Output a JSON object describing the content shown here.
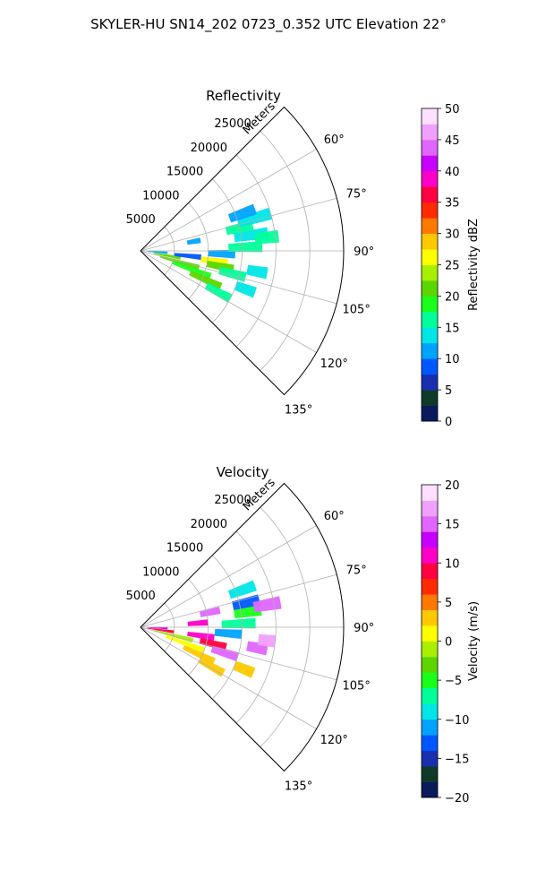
{
  "figure": {
    "suptitle": "SKYLER-HU  SN14_202  0723_0.352 UTC Elevation 22°"
  },
  "chart_data": [
    {
      "type": "heatmap",
      "subtype": "polar-sector",
      "title": "Reflectivity",
      "rlabel": "Meters",
      "theta_range_deg": [
        45,
        135
      ],
      "r_range": [
        0,
        30000
      ],
      "r_ticks": [
        5000,
        10000,
        15000,
        20000,
        25000
      ],
      "r_tick_labels": [
        "5000",
        "10000",
        "15000",
        "20000",
        "25000"
      ],
      "theta_ticks_deg": [
        60,
        75,
        90,
        105,
        120,
        135
      ],
      "theta_tick_labels": [
        "60°",
        "75°",
        "90°",
        "105°",
        "120°",
        "135°"
      ],
      "grid": true,
      "colorbar": {
        "label": "Reflectivity dBZ",
        "range": [
          0,
          50
        ],
        "ticks": [
          "0",
          "5",
          "10",
          "15",
          "20",
          "25",
          "30",
          "35",
          "40",
          "45",
          "50"
        ],
        "colors": [
          "#0a1a5c",
          "#0f3a2a",
          "#1a2fb0",
          "#0057ff",
          "#00a3ff",
          "#00e6e6",
          "#00ff9a",
          "#1aff1a",
          "#5cd600",
          "#a8f000",
          "#ffff00",
          "#ffc800",
          "#ff7800",
          "#ff2a00",
          "#ff0040",
          "#ff00c8",
          "#c800ff",
          "#e066ff",
          "#f0a0ff",
          "#fde0ff"
        ]
      },
      "echoes": [
        {
          "azimuth": 94,
          "range_start": 1000,
          "range_end": 4000,
          "value": 12
        },
        {
          "azimuth": 100,
          "range_start": 2000,
          "range_end": 6000,
          "value": 20
        },
        {
          "azimuth": 106,
          "range_start": 3000,
          "range_end": 9000,
          "value": 22
        },
        {
          "azimuth": 110,
          "range_start": 5000,
          "range_end": 11000,
          "value": 18
        },
        {
          "azimuth": 114,
          "range_start": 8000,
          "range_end": 13000,
          "value": 20
        },
        {
          "azimuth": 118,
          "range_start": 11000,
          "range_end": 15000,
          "value": 16
        },
        {
          "azimuth": 96,
          "range_start": 5000,
          "range_end": 9000,
          "value": 8
        },
        {
          "azimuth": 98,
          "range_start": 9000,
          "range_end": 13000,
          "value": 26
        },
        {
          "azimuth": 101,
          "range_start": 10000,
          "range_end": 14000,
          "value": 22
        },
        {
          "azimuth": 104,
          "range_start": 12000,
          "range_end": 16000,
          "value": 15
        },
        {
          "azimuth": 92,
          "range_start": 10000,
          "range_end": 14000,
          "value": 12
        },
        {
          "azimuth": 88,
          "range_start": 13000,
          "range_end": 18000,
          "value": 15
        },
        {
          "azimuth": 82,
          "range_start": 14000,
          "range_end": 19000,
          "value": 14
        },
        {
          "azimuth": 77,
          "range_start": 13000,
          "range_end": 17000,
          "value": 15
        },
        {
          "azimuth": 74,
          "range_start": 15000,
          "range_end": 20000,
          "value": 13
        },
        {
          "azimuth": 70,
          "range_start": 14000,
          "range_end": 18000,
          "value": 12
        },
        {
          "azimuth": 84,
          "range_start": 17000,
          "range_end": 20500,
          "value": 17
        },
        {
          "azimuth": 100,
          "range_start": 16000,
          "range_end": 19000,
          "value": 13
        },
        {
          "azimuth": 110,
          "range_start": 15000,
          "range_end": 18000,
          "value": 14
        },
        {
          "azimuth": 80,
          "range_start": 7000,
          "range_end": 9000,
          "value": 10
        }
      ]
    },
    {
      "type": "heatmap",
      "subtype": "polar-sector",
      "title": "Velocity",
      "rlabel": "Meters",
      "theta_range_deg": [
        45,
        135
      ],
      "r_range": [
        0,
        30000
      ],
      "r_ticks": [
        5000,
        10000,
        15000,
        20000,
        25000
      ],
      "r_tick_labels": [
        "5000",
        "10000",
        "15000",
        "20000",
        "25000"
      ],
      "theta_ticks_deg": [
        60,
        75,
        90,
        105,
        120,
        135
      ],
      "theta_tick_labels": [
        "60°",
        "75°",
        "90°",
        "105°",
        "120°",
        "135°"
      ],
      "grid": true,
      "colorbar": {
        "label": "Velocity (m/s)",
        "range": [
          -20,
          20
        ],
        "ticks": [
          "−20",
          "−15",
          "−10",
          "−5",
          "0",
          "5",
          "10",
          "15",
          "20"
        ],
        "colors": [
          "#0a1a5c",
          "#0f3a2a",
          "#1a2fb0",
          "#0057ff",
          "#00a3ff",
          "#00e6e6",
          "#00ff9a",
          "#1aff1a",
          "#5cd600",
          "#a8f000",
          "#ffff00",
          "#ffc800",
          "#ff7800",
          "#ff2a00",
          "#ff0040",
          "#ff00c8",
          "#c800ff",
          "#e066ff",
          "#f0a0ff",
          "#fde0ff"
        ]
      },
      "echoes": [
        {
          "azimuth": 92,
          "range_start": 1000,
          "range_end": 4000,
          "value": 12
        },
        {
          "azimuth": 98,
          "range_start": 1000,
          "range_end": 5000,
          "value": 8
        },
        {
          "azimuth": 104,
          "range_start": 2000,
          "range_end": 8000,
          "value": -2
        },
        {
          "azimuth": 110,
          "range_start": 4000,
          "range_end": 10000,
          "value": 1
        },
        {
          "azimuth": 115,
          "range_start": 7000,
          "range_end": 12000,
          "value": 2
        },
        {
          "azimuth": 119,
          "range_start": 10000,
          "range_end": 14000,
          "value": 3
        },
        {
          "azimuth": 98,
          "range_start": 7000,
          "range_end": 11000,
          "value": 11
        },
        {
          "azimuth": 103,
          "range_start": 9000,
          "range_end": 13000,
          "value": 9
        },
        {
          "azimuth": 107,
          "range_start": 11000,
          "range_end": 15000,
          "value": 14
        },
        {
          "azimuth": 94,
          "range_start": 11000,
          "range_end": 15000,
          "value": -12
        },
        {
          "azimuth": 88,
          "range_start": 12000,
          "range_end": 17000,
          "value": -8
        },
        {
          "azimuth": 82,
          "range_start": 14000,
          "range_end": 18000,
          "value": -5
        },
        {
          "azimuth": 86,
          "range_start": 7000,
          "range_end": 10000,
          "value": 10
        },
        {
          "azimuth": 78,
          "range_start": 9000,
          "range_end": 12000,
          "value": 14
        },
        {
          "azimuth": 77,
          "range_start": 14000,
          "range_end": 18000,
          "value": -14
        },
        {
          "azimuth": 80,
          "range_start": 17000,
          "range_end": 21000,
          "value": 15
        },
        {
          "azimuth": 70,
          "range_start": 14000,
          "range_end": 18000,
          "value": -10
        },
        {
          "azimuth": 100,
          "range_start": 16000,
          "range_end": 19000,
          "value": 14
        },
        {
          "azimuth": 112,
          "range_start": 15000,
          "range_end": 18000,
          "value": 3
        },
        {
          "azimuth": 96,
          "range_start": 17500,
          "range_end": 20000,
          "value": 16
        }
      ]
    }
  ]
}
